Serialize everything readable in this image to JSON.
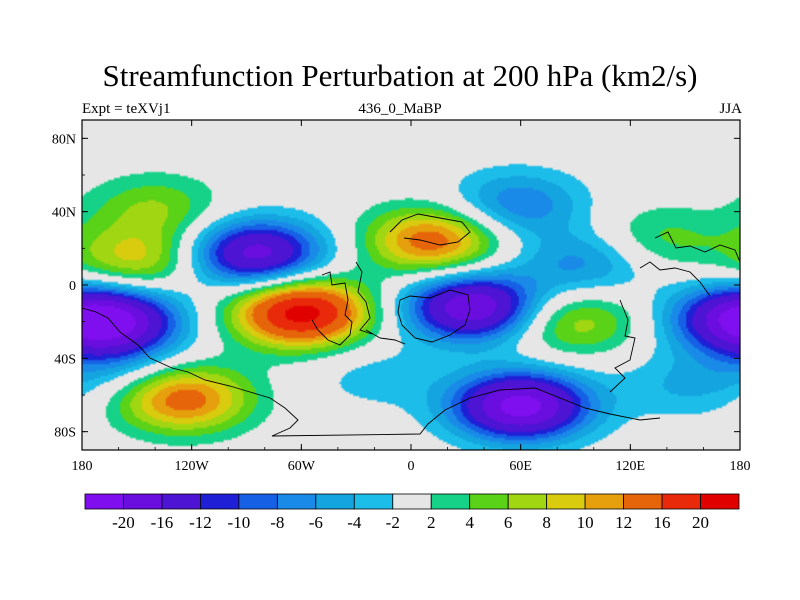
{
  "chart_data": {
    "type": "heatmap",
    "title": "Streamfunction Perturbation at 200 hPa (km2/s)",
    "left_string": "Expt = teXVj1",
    "center_string": "436_0_MaBP",
    "right_string": "JJA",
    "x_range": [
      -180,
      180
    ],
    "y_range": [
      -90,
      90
    ],
    "x_ticks": [
      {
        "value": -180,
        "label": "180"
      },
      {
        "value": -120,
        "label": "120W"
      },
      {
        "value": -60,
        "label": "60W"
      },
      {
        "value": 0,
        "label": "0"
      },
      {
        "value": 60,
        "label": "60E"
      },
      {
        "value": 120,
        "label": "120E"
      },
      {
        "value": 180,
        "label": "180"
      }
    ],
    "y_ticks": [
      {
        "value": 80,
        "label": "80N"
      },
      {
        "value": 40,
        "label": "40N"
      },
      {
        "value": 0,
        "label": "0"
      },
      {
        "value": -40,
        "label": "40S"
      },
      {
        "value": -80,
        "label": "80S"
      }
    ],
    "contour_levels": [
      -20,
      -16,
      -12,
      -10,
      -8,
      -6,
      -4,
      -2,
      2,
      4,
      6,
      8,
      10,
      12,
      16,
      20
    ],
    "colorbar_labels": [
      "-20",
      "-16",
      "-12",
      "-10",
      "-8",
      "-6",
      "-4",
      "-2",
      "2",
      "4",
      "6",
      "8",
      "10",
      "12",
      "16",
      "20"
    ],
    "colors": [
      "#7f0fef",
      "#6a0ee0",
      "#4d14d3",
      "#1f1fd6",
      "#1660e6",
      "#1a8ae8",
      "#14a4e0",
      "#1cbde8",
      "#e6e6e6",
      "#16d288",
      "#5ad218",
      "#a0d612",
      "#d9cc0e",
      "#e6a00e",
      "#e6640a",
      "#e82a0a",
      "#e00000"
    ],
    "missing_color": "#e6e6e6",
    "anomalies": [
      {
        "lon": -140,
        "lat": 42,
        "value": 6
      },
      {
        "lon": -85,
        "lat": 17,
        "value": -18
      },
      {
        "lon": -150,
        "lat": 14,
        "value": 9
      },
      {
        "lon": -162,
        "lat": -20,
        "value": -16
      },
      {
        "lon": -60,
        "lat": -15,
        "value": 22
      },
      {
        "lon": -125,
        "lat": -62,
        "value": 14
      },
      {
        "lon": 12,
        "lat": 24,
        "value": 14
      },
      {
        "lon": 34,
        "lat": -12,
        "value": -20
      },
      {
        "lon": 60,
        "lat": -66,
        "value": -22
      },
      {
        "lon": 58,
        "lat": 44,
        "value": -8
      },
      {
        "lon": 95,
        "lat": 12,
        "value": -7
      },
      {
        "lon": 88,
        "lat": -20,
        "value": 8
      },
      {
        "lon": 135,
        "lat": 25,
        "value": 5
      },
      {
        "lon": 176,
        "lat": -18,
        "value": -12
      },
      {
        "lon": 150,
        "lat": -55,
        "value": -4
      },
      {
        "lon": -20,
        "lat": -50,
        "value": -3
      },
      {
        "lon": -160,
        "lat": -45,
        "value": -4
      }
    ]
  }
}
